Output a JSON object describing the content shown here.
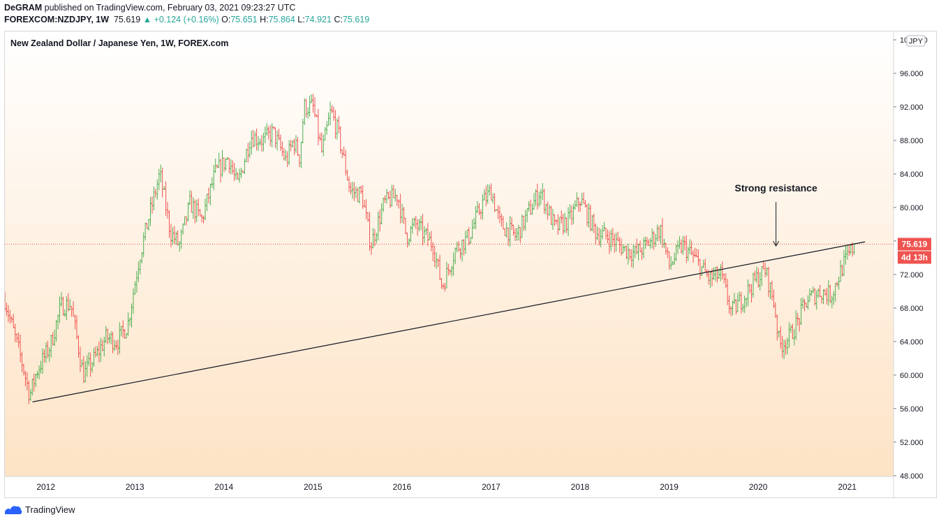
{
  "header": {
    "publisher": "DeGRAM",
    "published_line": " published on TradingView.com, February 03, 2021 09:23:27 UTC",
    "symbol": "FOREXCOM:NZDJPY, 1W",
    "last": "75.619",
    "change": "▲ +0.124 (+0.16%)",
    "o_label": "O:",
    "o_value": "75.651",
    "h_label": "H:",
    "h_value": "75.864",
    "l_label": "L:",
    "l_value": "74.921",
    "c_label": "C:",
    "c_value": "75.619"
  },
  "footer": {
    "brand": "TradingView"
  },
  "colors": {
    "up": "#26a69a",
    "down": "#ef5350",
    "bar_up": "#4caf50",
    "price_line": "#ef5350",
    "bg_top": "#ffffff",
    "bg_bottom": "#fde3c5"
  },
  "chart_data": {
    "type": "ohlc",
    "title": "New Zealand Dollar / Japanese Yen, 1W, FOREX.com",
    "currency": "JPY",
    "y_ticks": [
      "100.000",
      "96.000",
      "92.000",
      "88.000",
      "84.000",
      "80.000",
      "76.000",
      "72.000",
      "68.000",
      "64.000",
      "60.000",
      "56.000",
      "52.000",
      "48.000"
    ],
    "ylim": [
      47.9,
      101
    ],
    "x_ticks": [
      "2012",
      "2013",
      "2014",
      "2015",
      "2016",
      "2017",
      "2018",
      "2019",
      "2020",
      "2021"
    ],
    "xlim": [
      2011.54,
      2021.52
    ],
    "last_price": "75.619",
    "countdown": "4d 13h",
    "trendline": {
      "from": [
        2011.85,
        56.8
      ],
      "to": [
        2021.2,
        75.9
      ]
    },
    "annotation": {
      "text": "Strong resistance",
      "x": 2020.2,
      "arrow_tip": 75.4
    },
    "anchors": [
      [
        2011.54,
        69.0
      ],
      [
        2011.62,
        65.8
      ],
      [
        2011.72,
        62.0
      ],
      [
        2011.82,
        57.6
      ],
      [
        2011.9,
        60.5
      ],
      [
        2012.05,
        63.5
      ],
      [
        2012.17,
        68.2
      ],
      [
        2012.28,
        68.5
      ],
      [
        2012.42,
        60.0
      ],
      [
        2012.55,
        62.0
      ],
      [
        2012.68,
        64.5
      ],
      [
        2012.8,
        64.0
      ],
      [
        2012.92,
        66.0
      ],
      [
        2013.05,
        74.0
      ],
      [
        2013.15,
        78.5
      ],
      [
        2013.28,
        84.0
      ],
      [
        2013.4,
        77.0
      ],
      [
        2013.5,
        75.5
      ],
      [
        2013.62,
        80.5
      ],
      [
        2013.75,
        78.5
      ],
      [
        2013.9,
        84.0
      ],
      [
        2014.05,
        86.0
      ],
      [
        2014.15,
        82.5
      ],
      [
        2014.3,
        88.5
      ],
      [
        2014.45,
        88.0
      ],
      [
        2014.55,
        89.0
      ],
      [
        2014.7,
        85.5
      ],
      [
        2014.78,
        88.0
      ],
      [
        2014.85,
        86.0
      ],
      [
        2014.9,
        92.0
      ],
      [
        2015.0,
        92.0
      ],
      [
        2015.1,
        86.5
      ],
      [
        2015.2,
        91.5
      ],
      [
        2015.28,
        89.0
      ],
      [
        2015.42,
        82.0
      ],
      [
        2015.55,
        81.5
      ],
      [
        2015.65,
        75.5
      ],
      [
        2015.8,
        80.5
      ],
      [
        2015.95,
        81.5
      ],
      [
        2016.05,
        76.5
      ],
      [
        2016.15,
        78.0
      ],
      [
        2016.35,
        75.5
      ],
      [
        2016.45,
        70.5
      ],
      [
        2016.6,
        75.0
      ],
      [
        2016.75,
        76.5
      ],
      [
        2016.9,
        80.5
      ],
      [
        2017.0,
        82.0
      ],
      [
        2017.1,
        78.0
      ],
      [
        2017.28,
        76.5
      ],
      [
        2017.45,
        80.0
      ],
      [
        2017.55,
        82.0
      ],
      [
        2017.72,
        77.5
      ],
      [
        2017.88,
        78.5
      ],
      [
        2018.0,
        81.0
      ],
      [
        2018.18,
        77.0
      ],
      [
        2018.32,
        76.5
      ],
      [
        2018.5,
        75.0
      ],
      [
        2018.62,
        74.5
      ],
      [
        2018.75,
        75.5
      ],
      [
        2018.9,
        77.5
      ],
      [
        2019.0,
        73.0
      ],
      [
        2019.15,
        75.5
      ],
      [
        2019.28,
        74.0
      ],
      [
        2019.45,
        71.5
      ],
      [
        2019.58,
        72.0
      ],
      [
        2019.7,
        67.5
      ],
      [
        2019.85,
        69.5
      ],
      [
        2019.98,
        71.5
      ],
      [
        2020.08,
        72.5
      ],
      [
        2020.18,
        68.5
      ],
      [
        2020.24,
        63.5
      ],
      [
        2020.35,
        64.5
      ],
      [
        2020.45,
        66.5
      ],
      [
        2020.55,
        69.0
      ],
      [
        2020.7,
        70.0
      ],
      [
        2020.82,
        69.5
      ],
      [
        2020.95,
        73.0
      ],
      [
        2021.08,
        75.5
      ]
    ]
  }
}
